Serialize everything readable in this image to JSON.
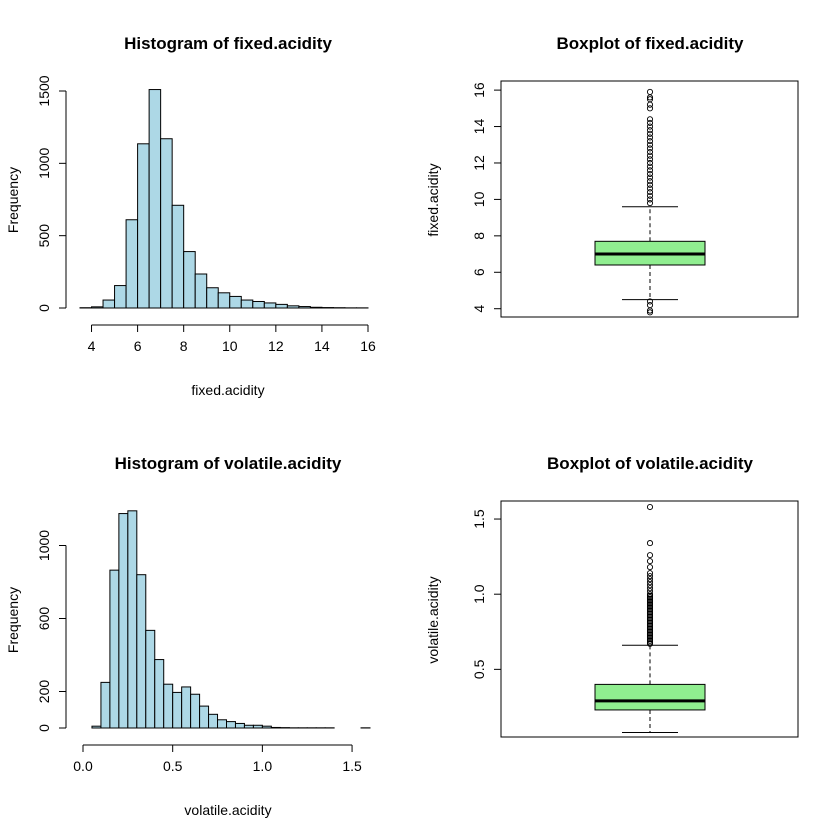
{
  "chart_data": [
    {
      "type": "histogram",
      "title": "Histogram of fixed.acidity",
      "xlabel": "fixed.acidity",
      "ylabel": "Frequency",
      "xlim": [
        3.5,
        16
      ],
      "ylim": [
        0,
        1500
      ],
      "x_ticks": [
        4,
        6,
        8,
        10,
        12,
        14,
        16
      ],
      "y_ticks": [
        0,
        500,
        1000,
        1500
      ],
      "bin_width": 0.5,
      "bins_start": [
        3.5,
        4,
        4.5,
        5,
        5.5,
        6,
        6.5,
        7,
        7.5,
        8,
        8.5,
        9,
        9.5,
        10,
        10.5,
        11,
        11.5,
        12,
        12.5,
        13,
        13.5,
        14,
        14.5,
        15,
        15.5
      ],
      "values": [
        2,
        8,
        55,
        155,
        610,
        1135,
        1510,
        1170,
        710,
        390,
        235,
        140,
        105,
        80,
        55,
        45,
        35,
        25,
        15,
        10,
        5,
        3,
        2,
        1,
        1
      ],
      "fill": "#add8e6"
    },
    {
      "type": "boxplot",
      "title": "Boxplot of fixed.acidity",
      "ylabel": "fixed.acidity",
      "ylim": [
        3.6,
        16.5
      ],
      "y_ticks": [
        4,
        6,
        8,
        10,
        12,
        14,
        16
      ],
      "stats": {
        "whisker_low": 4.5,
        "q1": 6.4,
        "median": 7.0,
        "q3": 7.7,
        "whisker_high": 9.6
      },
      "outliers": [
        3.8,
        3.9,
        4.2,
        4.4,
        9.8,
        10.0,
        10.2,
        10.4,
        10.6,
        10.8,
        11.0,
        11.2,
        11.4,
        11.6,
        11.8,
        12.0,
        12.2,
        12.4,
        12.6,
        12.8,
        13.0,
        13.2,
        13.4,
        13.6,
        13.8,
        14.0,
        14.2,
        14.4,
        15.0,
        15.2,
        15.5,
        15.6,
        15.9
      ],
      "fill": "#90ee90"
    },
    {
      "type": "histogram",
      "title": "Histogram of volatile.acidity",
      "xlabel": "volatile.acidity",
      "ylabel": "Frequency",
      "xlim": [
        0,
        1.6
      ],
      "ylim": [
        0,
        1200
      ],
      "x_ticks": [
        0.0,
        0.5,
        1.0,
        1.5
      ],
      "x_tick_labels": [
        "0.0",
        "0.5",
        "1.0",
        "1.5"
      ],
      "y_ticks": [
        0,
        200,
        600,
        1000
      ],
      "bin_width": 0.05,
      "bins_start": [
        0.05,
        0.1,
        0.15,
        0.2,
        0.25,
        0.3,
        0.35,
        0.4,
        0.45,
        0.5,
        0.55,
        0.6,
        0.65,
        0.7,
        0.75,
        0.8,
        0.85,
        0.9,
        0.95,
        1.0,
        1.05,
        1.1,
        1.15,
        1.2,
        1.25,
        1.3,
        1.35,
        1.4,
        1.45,
        1.5,
        1.55
      ],
      "values": [
        10,
        250,
        865,
        1175,
        1190,
        840,
        535,
        375,
        240,
        195,
        225,
        185,
        120,
        75,
        45,
        35,
        25,
        15,
        15,
        10,
        3,
        2,
        1,
        1,
        1,
        1,
        1,
        0,
        0,
        0,
        1
      ],
      "fill": "#add8e6"
    },
    {
      "type": "boxplot",
      "title": "Boxplot of volatile.acidity",
      "ylabel": "volatile.acidity",
      "ylim": [
        0.05,
        1.62
      ],
      "y_ticks": [
        0.5,
        1.0,
        1.5
      ],
      "y_tick_labels": [
        "0.5",
        "1.0",
        "1.5"
      ],
      "stats": {
        "whisker_low": 0.08,
        "q1": 0.23,
        "median": 0.29,
        "q3": 0.4,
        "whisker_high": 0.66
      },
      "outliers": [
        0.67,
        0.68,
        0.69,
        0.7,
        0.71,
        0.72,
        0.73,
        0.74,
        0.75,
        0.76,
        0.77,
        0.78,
        0.79,
        0.8,
        0.81,
        0.82,
        0.83,
        0.84,
        0.85,
        0.86,
        0.87,
        0.88,
        0.89,
        0.9,
        0.91,
        0.92,
        0.93,
        0.94,
        0.95,
        0.96,
        0.97,
        0.98,
        0.99,
        1.0,
        1.02,
        1.04,
        1.06,
        1.08,
        1.1,
        1.12,
        1.14,
        1.18,
        1.22,
        1.26,
        1.34,
        1.58
      ],
      "fill": "#90ee90"
    }
  ]
}
